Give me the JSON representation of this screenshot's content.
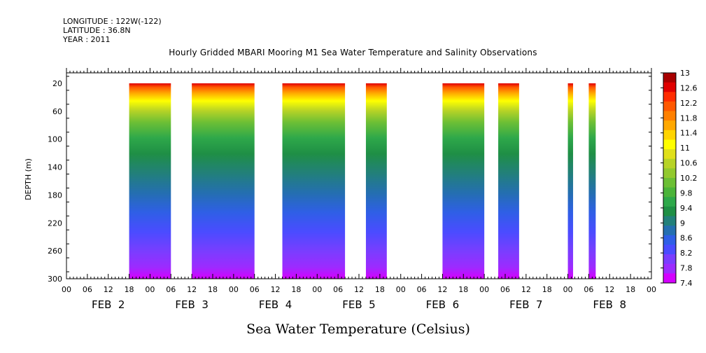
{
  "header": {
    "longitude": "LONGITUDE : 122W(-122)",
    "latitude": "LATITUDE : 36.8N",
    "year": "YEAR : 2011"
  },
  "colors": {
    "scale": [
      "#d400ff",
      "#9c2bff",
      "#7a3dff",
      "#4a4cff",
      "#2f5fe6",
      "#246fb0",
      "#22807a",
      "#1f8f45",
      "#2ea84a",
      "#4bb43a",
      "#6cbf35",
      "#92c92e",
      "#b7d326",
      "#e0e01a",
      "#ffff00",
      "#ffd400",
      "#ffa800",
      "#ff8000",
      "#ff5800",
      "#ff2c00",
      "#e00000",
      "#a80000"
    ]
  },
  "chart_data": {
    "type": "heatmap",
    "title": "Hourly Gridded MBARI Mooring M1 Sea Water Temperature and Salinity Observations",
    "ylabel": "DEPTH (m)",
    "variable_label": "Sea Water Temperature (Celsius)",
    "x_range": [
      "2011-02-02T00:00",
      "2011-02-09T00:00"
    ],
    "ylim": [
      300,
      5
    ],
    "y_ticks": [
      20,
      60,
      100,
      140,
      180,
      220,
      260,
      300
    ],
    "x_hour_labels": [
      "00",
      "06",
      "12",
      "18",
      "00",
      "06",
      "12",
      "18",
      "00",
      "06",
      "12",
      "18",
      "00",
      "06",
      "12",
      "18",
      "00",
      "06",
      "12",
      "18",
      "00",
      "06",
      "12",
      "18",
      "00",
      "06",
      "12",
      "18",
      "00"
    ],
    "x_day_labels": [
      "FEB  2",
      "FEB  3",
      "FEB  4",
      "FEB  5",
      "FEB  6",
      "FEB  7",
      "FEB  8"
    ],
    "colorbar": {
      "min": 7.4,
      "max": 13,
      "step": 0.2,
      "labels": [
        "13",
        "12.6",
        "12.2",
        "11.8",
        "11.4",
        "11",
        "10.6",
        "10.2",
        "9.8",
        "9.4",
        "9",
        "8.6",
        "8.2",
        "7.8",
        "7.4"
      ]
    },
    "depth_bottom": 300,
    "depth_top": 20,
    "data_segments": [
      {
        "start": "2011-02-02T18:00",
        "end": "2011-02-03T06:00"
      },
      {
        "start": "2011-02-03T12:00",
        "end": "2011-02-04T06:00"
      },
      {
        "start": "2011-02-04T14:00",
        "end": "2011-02-05T08:00"
      },
      {
        "start": "2011-02-05T14:00",
        "end": "2011-02-05T20:00"
      },
      {
        "start": "2011-02-06T12:00",
        "end": "2011-02-07T00:00"
      },
      {
        "start": "2011-02-07T04:00",
        "end": "2011-02-07T10:00"
      },
      {
        "start": "2011-02-08T00:00",
        "end": "2011-02-08T01:30"
      },
      {
        "start": "2011-02-08T06:00",
        "end": "2011-02-08T08:00"
      }
    ]
  }
}
